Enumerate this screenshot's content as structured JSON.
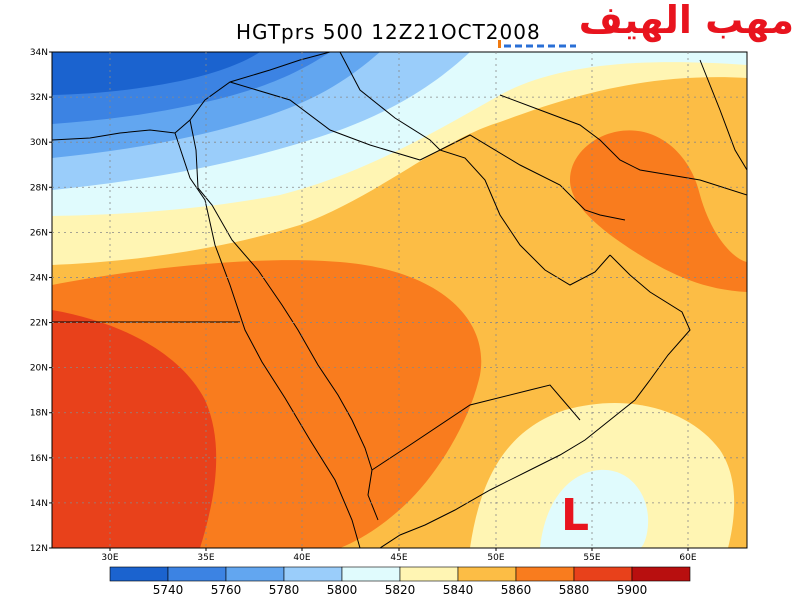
{
  "title": "HGTprs 500 12Z21OCT2008",
  "watermark": "مهب الهيف",
  "low_marker": "L",
  "lat_ticks": [
    "34N",
    "32N",
    "30N",
    "28N",
    "26N",
    "24N",
    "22N",
    "20N",
    "18N",
    "16N",
    "14N",
    "12N"
  ],
  "lon_ticks": [
    "30E",
    "35E",
    "40E",
    "45E",
    "50E",
    "55E",
    "60E"
  ],
  "colorbar": {
    "labels": [
      "5740",
      "5760",
      "5780",
      "5800",
      "5820",
      "5840",
      "5860",
      "5880",
      "5900"
    ],
    "colors": [
      "#1b63cf",
      "#3c83e3",
      "#62a6f0",
      "#9acdfa",
      "#e0fbfd",
      "#fff5b3",
      "#fcbd45",
      "#f97c1e",
      "#e8411b",
      "#b80f0f"
    ]
  },
  "fill_colors": {
    "c5740": "#1b63cf",
    "c5760": "#3c83e3",
    "c5780": "#62a6f0",
    "c5800": "#9acdfa",
    "c5820": "#e0fbfd",
    "c5840": "#fff5b3",
    "c5860": "#fcbd45",
    "c5880": "#f97c1e",
    "c5900": "#e8411b"
  }
}
